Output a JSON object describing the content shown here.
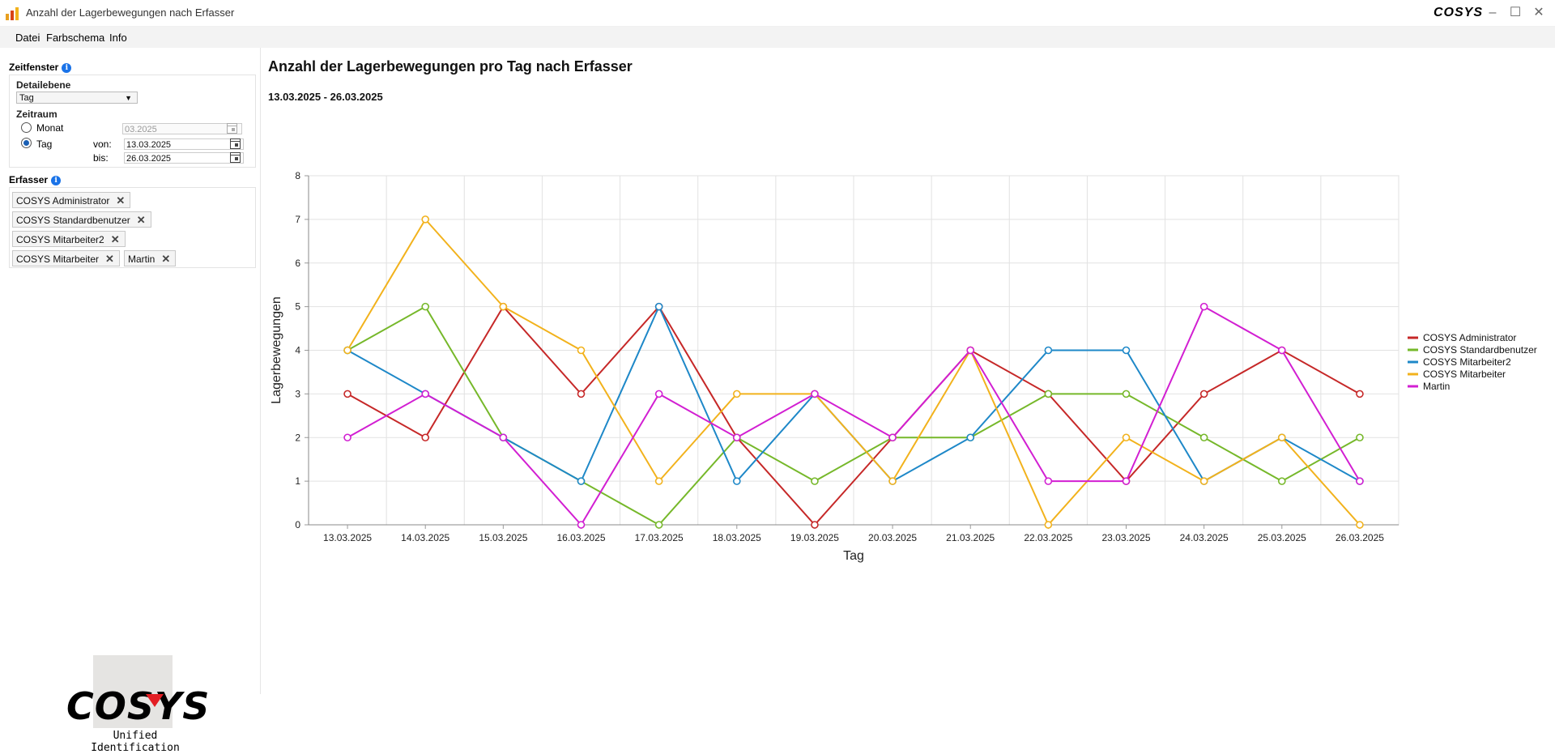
{
  "window": {
    "title": "Anzahl der Lagerbewegungen nach Erfasser",
    "brand": "COSYS"
  },
  "menu": [
    "Datei",
    "Farbschema",
    "Info"
  ],
  "sidebar": {
    "zeitfenster_label": "Zeitfenster",
    "detailebene_label": "Detailebene",
    "detailebene_value": "Tag",
    "zeitraum_label": "Zeitraum",
    "monat_label": "Monat",
    "monat_value": "03.2025",
    "tag_label": "Tag",
    "von_label": "von:",
    "von_value": "13.03.2025",
    "bis_label": "bis:",
    "bis_value": "26.03.2025",
    "erfasser_label": "Erfasser",
    "erfasser_chips": [
      "COSYS Administrator",
      "COSYS Standardbenutzer",
      "COSYS Mitarbeiter2",
      "COSYS Mitarbeiter",
      "Martin"
    ],
    "logo_text": "COSYS",
    "logo_subtitle": "Unified Identification"
  },
  "chart_title": "Anzahl der Lagerbewegungen pro Tag nach Erfasser",
  "chart_subtitle": "13.03.2025 - 26.03.2025",
  "chart_data": {
    "type": "line",
    "xlabel": "Tag",
    "ylabel": "Lagerbewegungen",
    "ylim": [
      0,
      8
    ],
    "yticks": [
      0,
      1,
      2,
      3,
      4,
      5,
      6,
      7,
      8
    ],
    "grid": true,
    "legend": "right",
    "categories": [
      "13.03.2025",
      "14.03.2025",
      "15.03.2025",
      "16.03.2025",
      "17.03.2025",
      "18.03.2025",
      "19.03.2025",
      "20.03.2025",
      "21.03.2025",
      "22.03.2025",
      "23.03.2025",
      "24.03.2025",
      "25.03.2025",
      "26.03.2025"
    ],
    "series": [
      {
        "name": "COSYS Administrator",
        "color": "#c62828",
        "values": [
          3,
          2,
          5,
          3,
          5,
          2,
          0,
          2,
          4,
          3,
          1,
          3,
          4,
          3
        ]
      },
      {
        "name": "COSYS Standardbenutzer",
        "color": "#76b82a",
        "values": [
          4,
          5,
          2,
          1,
          0,
          2,
          1,
          2,
          2,
          3,
          3,
          2,
          1,
          2
        ]
      },
      {
        "name": "COSYS Mitarbeiter2",
        "color": "#1e88c8",
        "values": [
          4,
          3,
          2,
          1,
          5,
          1,
          3,
          1,
          2,
          4,
          4,
          1,
          2,
          1
        ]
      },
      {
        "name": "COSYS Mitarbeiter",
        "color": "#f2b21c",
        "values": [
          4,
          7,
          5,
          4,
          1,
          3,
          3,
          1,
          4,
          0,
          2,
          1,
          2,
          0
        ]
      },
      {
        "name": "Martin",
        "color": "#d21fd2",
        "values": [
          2,
          3,
          2,
          0,
          3,
          2,
          3,
          2,
          4,
          1,
          1,
          5,
          4,
          1
        ]
      }
    ]
  }
}
